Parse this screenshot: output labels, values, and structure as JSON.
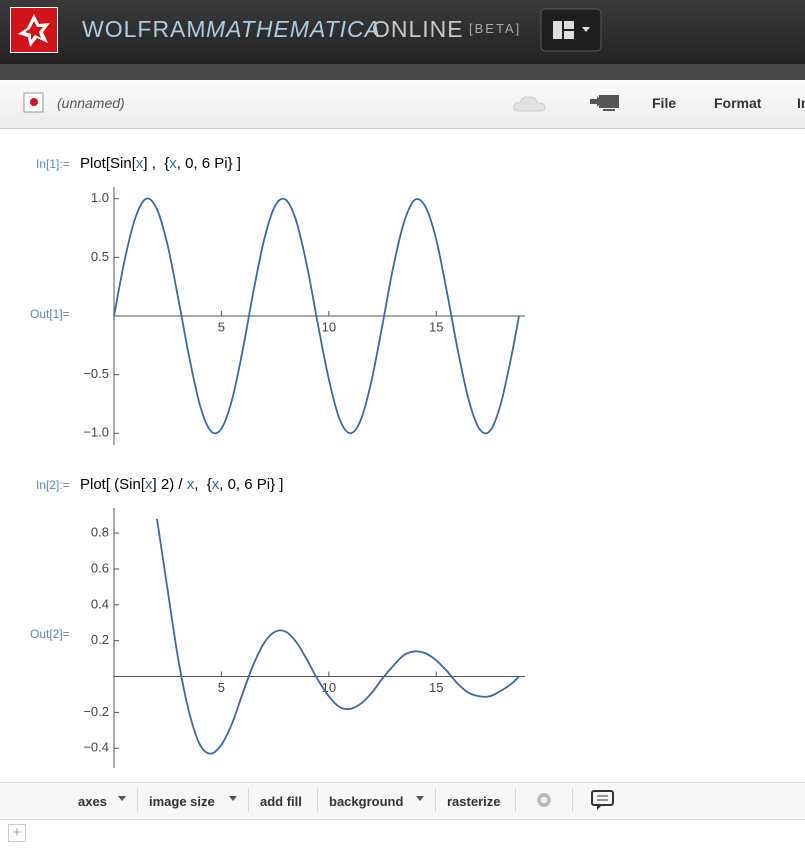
{
  "header": {
    "brand": "WOLFRAM",
    "product": "MATHEMATICA",
    "edition": "ONLINE",
    "badge": "[BETA]"
  },
  "toolbar": {
    "notebook": "(unnamed)",
    "menu": [
      "File",
      "Format",
      "In"
    ]
  },
  "cells": [
    {
      "in_label": "In[1]:=",
      "input": [
        "Plot[Sin[",
        "x",
        "] ,  {",
        "x",
        ", 0, 6 Pi} ]"
      ],
      "out_label": "Out[1]=",
      "output": {
        "type": "line",
        "x": [
          0,
          0.5,
          1,
          1.5,
          2,
          2.5,
          3,
          3.5,
          4,
          4.5,
          5,
          5.5,
          6,
          6.5,
          7,
          7.5,
          8,
          8.5,
          9,
          9.5,
          10,
          10.5,
          11,
          11.5,
          12,
          12.5,
          13,
          13.5,
          14,
          14.5,
          15,
          15.5,
          16,
          16.5,
          17,
          17.5,
          18,
          18.5,
          18.85
        ],
        "series": [
          {
            "color": "#3d68a6",
            "values": [
              0,
              0.48,
              0.84,
              1.0,
              0.91,
              0.6,
              0.14,
              -0.35,
              -0.76,
              -0.98,
              -0.96,
              -0.71,
              -0.28,
              0.22,
              0.66,
              0.94,
              0.99,
              0.8,
              0.41,
              -0.08,
              -0.54,
              -0.88,
              -1.0,
              -0.88,
              -0.54,
              -0.07,
              0.42,
              0.8,
              0.99,
              0.93,
              0.65,
              0.2,
              -0.29,
              -0.71,
              -0.96,
              -0.98,
              -0.75,
              -0.34,
              0
            ]
          }
        ],
        "xlim": [
          0,
          18.85
        ],
        "ylim": [
          -1.1,
          1.1
        ],
        "xticks": [
          5,
          10,
          15
        ],
        "yticks": [
          {
            "value": -1,
            "label": "−1.0"
          },
          {
            "value": -0.5,
            "label": "−0.5"
          },
          0.5,
          {
            "value": 1,
            "label": "1.0"
          }
        ],
        "grid": false
      }
    },
    {
      "in_label": "In[2]:=",
      "input": [
        "Plot[ (Sin[",
        "x",
        "] 2) / ",
        "x",
        ",  {",
        "x",
        ", 0, 6 Pi} ]"
      ],
      "out_label": "Out[2]=",
      "output": {
        "type": "line",
        "x": [
          2,
          2.5,
          3,
          3.5,
          4,
          4.5,
          5,
          5.5,
          6,
          6.5,
          7,
          7.5,
          8,
          8.5,
          9,
          9.5,
          10,
          10.5,
          11,
          11.5,
          12,
          12.5,
          13,
          13.5,
          14,
          14.5,
          15,
          15.5,
          16,
          16.5,
          17,
          17.5,
          18,
          18.5,
          18.85
        ],
        "series": [
          {
            "color": "#3d68a6",
            "values": [
              0.88,
              0.48,
              0.09,
              -0.2,
              -0.38,
              -0.43,
              -0.38,
              -0.26,
              -0.09,
              0.07,
              0.19,
              0.25,
              0.25,
              0.19,
              0.09,
              -0.02,
              -0.11,
              -0.17,
              -0.18,
              -0.15,
              -0.09,
              -0.01,
              0.06,
              0.12,
              0.14,
              0.13,
              0.09,
              0.03,
              -0.04,
              -0.09,
              -0.11,
              -0.11,
              -0.08,
              -0.04,
              0
            ]
          }
        ],
        "xlim": [
          0,
          18.85
        ],
        "ylim": [
          -0.51,
          0.94
        ],
        "xticks": [
          5,
          10,
          15
        ],
        "yticks": [
          {
            "value": -0.4,
            "label": "−0.4"
          },
          {
            "value": -0.2,
            "label": "−0.2"
          },
          0.2,
          0.4,
          0.6,
          0.8
        ],
        "grid": false
      }
    }
  ],
  "graphics_bar": [
    "axes",
    "image size",
    "add fill",
    "background",
    "rasterize"
  ]
}
